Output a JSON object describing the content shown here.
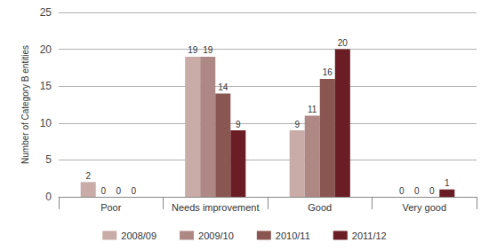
{
  "chart_data": {
    "type": "bar",
    "y_label": "Number of Category B entities",
    "categories": [
      "Poor",
      "Needs improvement",
      "Good",
      "Very good"
    ],
    "series": [
      {
        "name": "2008/09",
        "color": "#c9aba8",
        "values": [
          2,
          19,
          9,
          0
        ]
      },
      {
        "name": "2009/10",
        "color": "#ad8884",
        "values": [
          0,
          19,
          11,
          0
        ]
      },
      {
        "name": "2010/11",
        "color": "#8a5651",
        "values": [
          0,
          14,
          16,
          0
        ]
      },
      {
        "name": "2011/12",
        "color": "#6b1d26",
        "values": [
          0,
          9,
          20,
          1
        ]
      }
    ],
    "ylim": [
      0,
      25
    ],
    "yticks": [
      0,
      5,
      10,
      15,
      20,
      25
    ],
    "grid": true,
    "data_labels": true,
    "legend": "bottom"
  }
}
